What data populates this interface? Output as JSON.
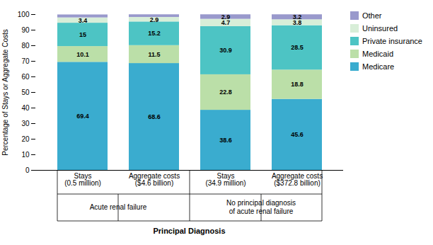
{
  "chart_data": {
    "type": "bar",
    "stacked": true,
    "xlabel": "Principal Diagnosis",
    "ylabel": "Percentage of Stays or Aggregate Costs",
    "categories": [
      "Stays\n(0.5 million)",
      "Aggregate costs\n($4.6 billion)",
      "Stays\n(34.9 million)",
      "Aggregate costs\n($372.8 billion)"
    ],
    "groups": [
      {
        "name": "Acute renal failure",
        "categories": [
          "Stays\n(0.5 million)",
          "Aggregate costs\n($4.6 billion)"
        ]
      },
      {
        "name": "No principal diagnosis\nof acute renal failure",
        "categories": [
          "Stays\n(34.9 million)",
          "Aggregate costs\n($372.8 billion)"
        ]
      }
    ],
    "series": [
      {
        "name": "Medicare",
        "color": "#3AACCF",
        "values": [
          69.4,
          68.6,
          38.6,
          45.6
        ]
      },
      {
        "name": "Medicaid",
        "color": "#BBDFA8",
        "values": [
          10.1,
          11.5,
          22.8,
          18.8
        ]
      },
      {
        "name": "Private insurance",
        "color": "#4DC4C4",
        "values": [
          15.0,
          15.2,
          30.9,
          28.5
        ]
      },
      {
        "name": "Uninsured",
        "color": "#D8EED8",
        "values": [
          3.4,
          2.9,
          4.7,
          3.8
        ]
      },
      {
        "name": "Other",
        "color": "#9999CC",
        "values": [
          1.9,
          1.7,
          2.9,
          3.2
        ],
        "value_labels": [
          null,
          null,
          "2.9",
          "3.2"
        ]
      }
    ],
    "ylim": [
      0,
      100
    ],
    "yticks": [
      0,
      10,
      20,
      30,
      40,
      50,
      60,
      70,
      80,
      90,
      100
    ],
    "grid": false,
    "legend": "right",
    "data_labels": true
  }
}
